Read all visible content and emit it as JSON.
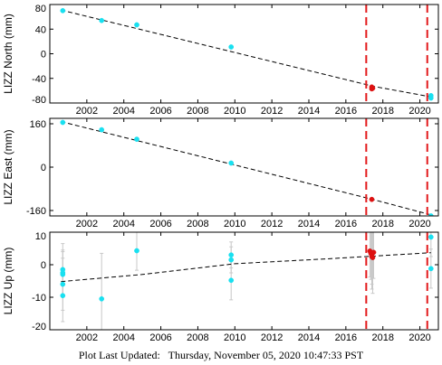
{
  "footer": {
    "label": "Plot Last Updated:",
    "date": "Thursday, November 05, 2020 10:47:33 PST"
  },
  "colors": {
    "early_points": "#19e0f0",
    "recent_points": "#dd1111",
    "fit_line": "#000000",
    "event_lines": "#e31a1c",
    "error_bars": "#c8c8c8"
  },
  "chart_data": [
    {
      "type": "scatter",
      "ylabel": "LIZZ North (mm)",
      "xlim": [
        2000,
        2021
      ],
      "ylim": [
        -80,
        80
      ],
      "x_ticks": [
        "2002",
        "2004",
        "2006",
        "2008",
        "2010",
        "2012",
        "2014",
        "2016",
        "2018",
        "2020"
      ],
      "y_ticks": [
        "80",
        "40",
        "0",
        "-40",
        "-80"
      ],
      "y_tick_values": [
        80,
        40,
        0,
        -40,
        -80
      ],
      "event_lines": [
        2017.1,
        2020.4
      ],
      "fit_line": [
        [
          2000.6,
          71
        ],
        [
          2017.5,
          -53
        ],
        [
          2020.6,
          -70
        ]
      ],
      "series": [
        {
          "color": "cyan",
          "x": [
            2000.7,
            2002.8,
            2004.7,
            2009.8,
            2020.6,
            2020.6
          ],
          "y": [
            70,
            54,
            47,
            11,
            -68,
            -72
          ]
        },
        {
          "color": "red",
          "x": [
            2017.4,
            2017.4,
            2017.45
          ],
          "y": [
            -54,
            -57,
            -56
          ]
        }
      ]
    },
    {
      "type": "scatter",
      "ylabel": "LIZZ East (mm)",
      "xlim": [
        2000,
        2021
      ],
      "ylim": [
        -180,
        180
      ],
      "x_ticks": [
        "2002",
        "2004",
        "2006",
        "2008",
        "2010",
        "2012",
        "2014",
        "2016",
        "2018",
        "2020"
      ],
      "y_ticks": [
        "160",
        "0",
        "-160"
      ],
      "y_tick_values": [
        160,
        0,
        -160
      ],
      "event_lines": [
        2017.1,
        2020.4
      ],
      "fit_line": [
        [
          2000.6,
          168
        ],
        [
          2017.5,
          -120
        ],
        [
          2020.6,
          -176
        ]
      ],
      "series": [
        {
          "color": "cyan",
          "x": [
            2000.7,
            2002.8,
            2004.7,
            2009.8,
            2020.6
          ],
          "y": [
            165,
            138,
            103,
            15,
            -180
          ]
        },
        {
          "color": "red",
          "x": [
            2017.4
          ],
          "y": [
            -119
          ]
        }
      ]
    },
    {
      "type": "scatter",
      "ylabel": "LIZZ Up (mm)",
      "xlim": [
        2000,
        2021
      ],
      "ylim": [
        -20,
        10
      ],
      "x_ticks": [
        "2002",
        "2004",
        "2006",
        "2008",
        "2010",
        "2012",
        "2014",
        "2016",
        "2018",
        "2020"
      ],
      "y_ticks": [
        "10",
        "0",
        "-10",
        "-20"
      ],
      "y_tick_values": [
        10,
        0,
        -10,
        -20
      ],
      "event_lines": [
        2017.1,
        2020.4
      ],
      "fit_line": [
        [
          2000.6,
          -5.2
        ],
        [
          2005,
          -3
        ],
        [
          2010,
          0.3
        ],
        [
          2015,
          1.8
        ],
        [
          2020.6,
          3.7
        ]
      ],
      "series": [
        {
          "color": "cyan",
          "x": [
            2000.7,
            2000.7,
            2000.7,
            2000.7,
            2000.7,
            2002.8,
            2004.7,
            2009.8,
            2009.8,
            2009.8,
            2020.6,
            2020.6
          ],
          "y": [
            -1.5,
            -2.5,
            -3,
            -6,
            -9.5,
            -10.5,
            4.3,
            3,
            1.5,
            -4.8,
            8.5,
            -1.2
          ],
          "err": [
            8,
            7,
            7,
            8,
            8,
            14,
            6,
            4,
            4,
            6,
            6,
            6
          ]
        },
        {
          "color": "red",
          "x": [
            2017.3,
            2017.35,
            2017.4,
            2017.4,
            2017.45,
            2017.5
          ],
          "y": [
            4.2,
            3.5,
            3,
            2.5,
            2.2,
            3.8
          ],
          "err": [
            8,
            8,
            9,
            10,
            11,
            8
          ]
        }
      ]
    }
  ]
}
